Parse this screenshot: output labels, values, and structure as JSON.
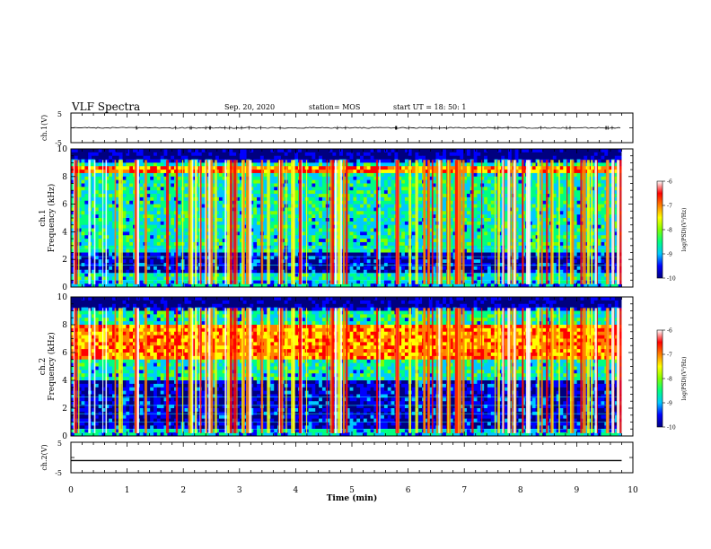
{
  "header": {
    "title": "VLF Spectra",
    "date": "Sep. 20, 2020",
    "station": "station= MOS",
    "start": "start  UT =   18: 50: 1"
  },
  "chart_data": {
    "type": "heatmap",
    "x": {
      "label": "Time  (min)",
      "range": [
        0,
        10
      ],
      "ticks": [
        "0",
        "1",
        "2",
        "3",
        "4",
        "5",
        "6",
        "7",
        "8",
        "9",
        "10"
      ]
    },
    "panels": [
      {
        "name": "ch.1(V)",
        "kind": "waveform",
        "y_range": [
          -5,
          5
        ],
        "y_ticks": [
          "5",
          "-5"
        ],
        "level": 0
      },
      {
        "name": "ch.1 Frequency (kHz)",
        "kind": "spectrogram",
        "y_range": [
          0,
          10
        ],
        "y_ticks": [
          "0",
          "2",
          "4",
          "6",
          "8",
          "10"
        ],
        "y_label_top": "ch.1",
        "y_label": "Frequency  (kHz)",
        "hot_band_khz": [
          8.3,
          8.8
        ],
        "dark_band_khz": [
          1.0,
          2.6
        ]
      },
      {
        "name": "ch.2 Frequency (kHz)",
        "kind": "spectrogram",
        "y_range": [
          0,
          10
        ],
        "y_ticks": [
          "0",
          "2",
          "4",
          "6",
          "8",
          "10"
        ],
        "y_label_top": "ch.2",
        "y_label": "Frequency  (kHz)",
        "hot_band_khz": [
          5.5,
          8.0
        ],
        "dark_band_khz": [
          0.5,
          4.0
        ]
      },
      {
        "name": "ch.2(V)",
        "kind": "waveform",
        "y_range": [
          -5,
          5
        ],
        "y_ticks": [
          "5",
          "-5"
        ],
        "level": -1
      }
    ],
    "data_end_min": 9.8,
    "colorbar": {
      "label": "log(PSD)(V²/Hz)",
      "range": [
        -10,
        -6
      ],
      "ticks": [
        "-6",
        "-7",
        "-8",
        "-9",
        "-10"
      ],
      "colors": [
        "#000080",
        "#0000ff",
        "#00c8ff",
        "#00ff80",
        "#80ff00",
        "#ffff00",
        "#ff8000",
        "#ff0000",
        "#ffffff"
      ]
    }
  }
}
